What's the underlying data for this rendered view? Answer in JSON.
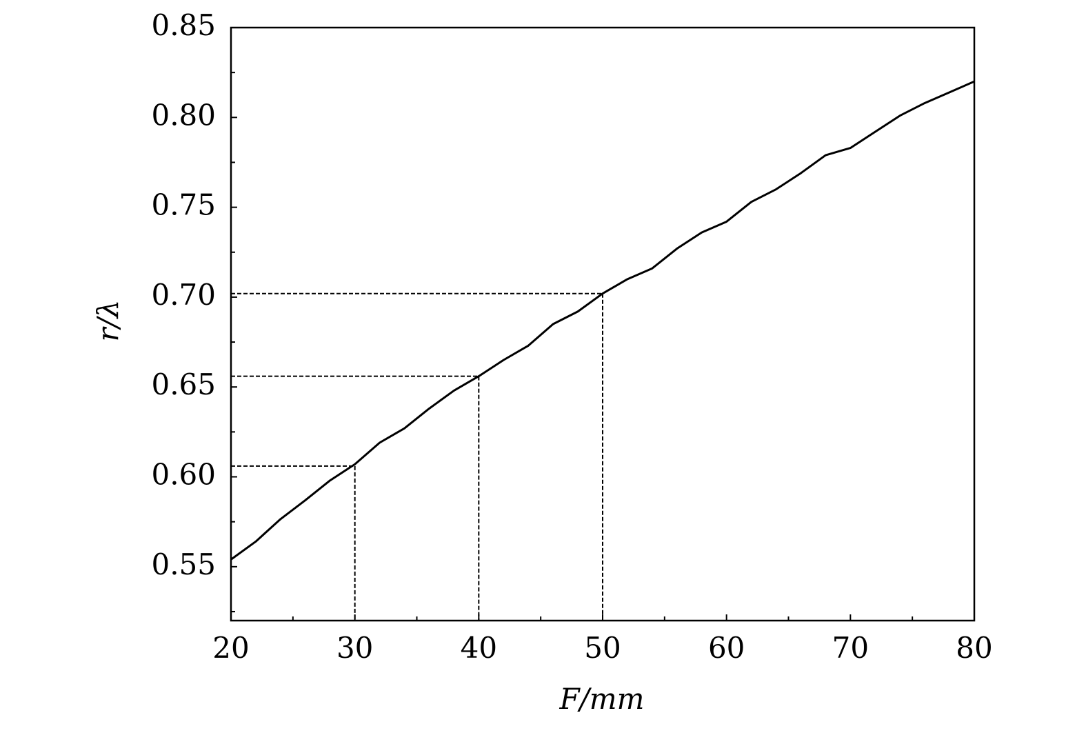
{
  "chart_data": {
    "type": "line",
    "xlabel": "F/mm",
    "ylabel": "r/λ",
    "x": [
      20,
      22,
      24,
      26,
      28,
      30,
      32,
      34,
      36,
      38,
      40,
      42,
      44,
      46,
      48,
      50,
      52,
      54,
      56,
      58,
      60,
      62,
      64,
      66,
      68,
      70,
      72,
      74,
      76,
      78,
      80
    ],
    "series": [
      {
        "color": "#000000",
        "values": [
          0.554,
          0.564,
          0.5765,
          0.587,
          0.598,
          0.607,
          0.619,
          0.627,
          0.638,
          0.648,
          0.656,
          0.665,
          0.673,
          0.685,
          0.692,
          0.702,
          0.71,
          0.716,
          0.727,
          0.736,
          0.742,
          0.753,
          0.76,
          0.769,
          0.779,
          0.783,
          0.792,
          0.801,
          0.808,
          0.814,
          0.82
        ]
      }
    ],
    "reference_points": {
      "x": [
        30,
        40,
        50
      ],
      "y": [
        0.606,
        0.656,
        0.702
      ]
    },
    "xlim": [
      20,
      80
    ],
    "xticks": [
      20,
      30,
      40,
      50,
      60,
      70,
      80
    ],
    "xminor": [
      25,
      35,
      45,
      55,
      65,
      75
    ],
    "ylim": [
      0.52,
      0.85
    ],
    "yticks": [
      0.55,
      {
        "value": 0.6,
        "label": "0.60"
      },
      0.65,
      {
        "value": 0.7,
        "label": "0.70"
      },
      0.75,
      {
        "value": 0.8,
        "label": "0.80"
      },
      0.85
    ],
    "yminor": [
      0.525,
      0.575,
      0.625,
      0.675,
      0.725,
      0.775,
      0.825
    ],
    "grid": false
  }
}
